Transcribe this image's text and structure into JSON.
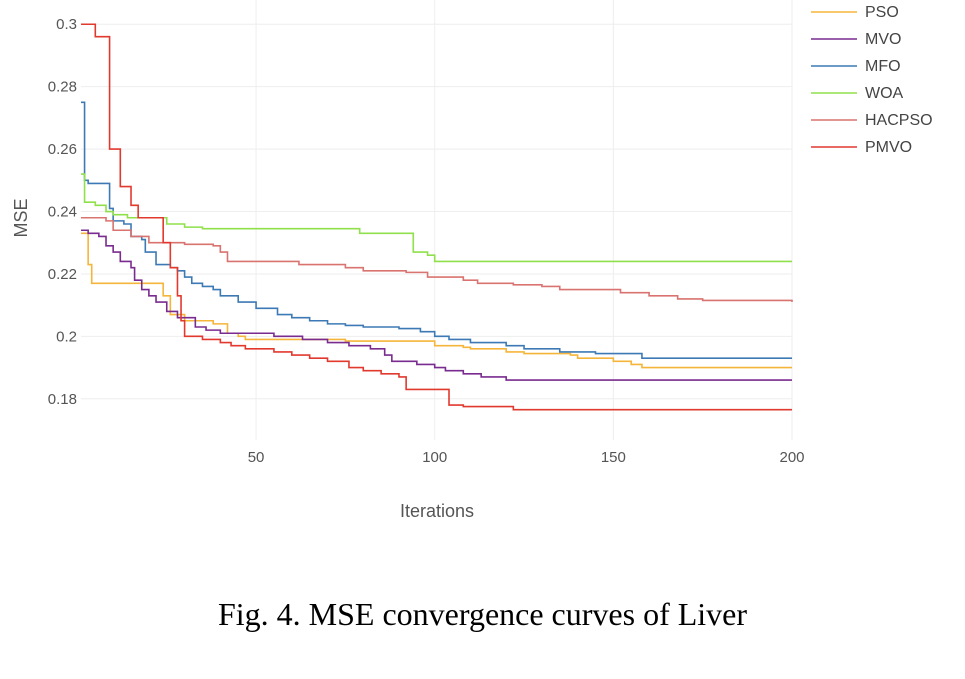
{
  "caption": "Fig. 4.  MSE convergence curves of Liver",
  "chart_data": {
    "type": "line",
    "title": "",
    "xlabel": "Iterations",
    "ylabel": "MSE",
    "xlim": [
      1,
      200
    ],
    "ylim": [
      0.17,
      0.302
    ],
    "x_ticks": [
      50,
      100,
      150,
      200
    ],
    "y_ticks": [
      0.18,
      0.2,
      0.22,
      0.24,
      0.26,
      0.28,
      0.3
    ],
    "y_tick_labels": [
      "0.18",
      "0.2",
      "0.22",
      "0.24",
      "0.26",
      "0.28",
      "0.3"
    ],
    "grid": true,
    "legend_position": "top-right",
    "series": [
      {
        "name": "PSO",
        "color": "#f5b53a",
        "points": [
          [
            1,
            0.233
          ],
          [
            3,
            0.223
          ],
          [
            4,
            0.217
          ],
          [
            20,
            0.217
          ],
          [
            24,
            0.213
          ],
          [
            26,
            0.207
          ],
          [
            30,
            0.205
          ],
          [
            38,
            0.204
          ],
          [
            42,
            0.201
          ],
          [
            45,
            0.2
          ],
          [
            47,
            0.199
          ],
          [
            65,
            0.199
          ],
          [
            75,
            0.1985
          ],
          [
            100,
            0.197
          ],
          [
            108,
            0.1965
          ],
          [
            110,
            0.196
          ],
          [
            120,
            0.195
          ],
          [
            125,
            0.1945
          ],
          [
            138,
            0.194
          ],
          [
            140,
            0.193
          ],
          [
            150,
            0.192
          ],
          [
            155,
            0.191
          ],
          [
            158,
            0.19
          ],
          [
            200,
            0.19
          ]
        ]
      },
      {
        "name": "MVO",
        "color": "#7a2b8f",
        "points": [
          [
            1,
            0.234
          ],
          [
            3,
            0.233
          ],
          [
            6,
            0.232
          ],
          [
            8,
            0.229
          ],
          [
            10,
            0.227
          ],
          [
            12,
            0.224
          ],
          [
            15,
            0.222
          ],
          [
            16,
            0.218
          ],
          [
            18,
            0.215
          ],
          [
            20,
            0.213
          ],
          [
            22,
            0.211
          ],
          [
            25,
            0.208
          ],
          [
            28,
            0.206
          ],
          [
            33,
            0.203
          ],
          [
            36,
            0.202
          ],
          [
            40,
            0.201
          ],
          [
            55,
            0.2
          ],
          [
            63,
            0.199
          ],
          [
            70,
            0.198
          ],
          [
            76,
            0.197
          ],
          [
            82,
            0.196
          ],
          [
            86,
            0.194
          ],
          [
            88,
            0.192
          ],
          [
            95,
            0.191
          ],
          [
            100,
            0.19
          ],
          [
            103,
            0.189
          ],
          [
            108,
            0.188
          ],
          [
            113,
            0.187
          ],
          [
            120,
            0.186
          ],
          [
            200,
            0.186
          ]
        ]
      },
      {
        "name": "MFO",
        "color": "#3d7ab5",
        "points": [
          [
            1,
            0.275
          ],
          [
            2,
            0.25
          ],
          [
            3,
            0.249
          ],
          [
            8,
            0.249
          ],
          [
            9,
            0.241
          ],
          [
            10,
            0.237
          ],
          [
            13,
            0.236
          ],
          [
            15,
            0.232
          ],
          [
            18,
            0.231
          ],
          [
            19,
            0.227
          ],
          [
            22,
            0.223
          ],
          [
            26,
            0.222
          ],
          [
            28,
            0.221
          ],
          [
            30,
            0.219
          ],
          [
            32,
            0.217
          ],
          [
            35,
            0.216
          ],
          [
            38,
            0.215
          ],
          [
            40,
            0.213
          ],
          [
            45,
            0.211
          ],
          [
            50,
            0.209
          ],
          [
            56,
            0.207
          ],
          [
            60,
            0.206
          ],
          [
            65,
            0.205
          ],
          [
            70,
            0.204
          ],
          [
            75,
            0.2035
          ],
          [
            80,
            0.203
          ],
          [
            90,
            0.2025
          ],
          [
            96,
            0.2015
          ],
          [
            100,
            0.2
          ],
          [
            104,
            0.199
          ],
          [
            110,
            0.198
          ],
          [
            120,
            0.197
          ],
          [
            125,
            0.196
          ],
          [
            135,
            0.195
          ],
          [
            145,
            0.1945
          ],
          [
            158,
            0.193
          ],
          [
            200,
            0.193
          ]
        ]
      },
      {
        "name": "WOA",
        "color": "#8fe04a",
        "points": [
          [
            1,
            0.252
          ],
          [
            2,
            0.243
          ],
          [
            5,
            0.242
          ],
          [
            8,
            0.24
          ],
          [
            10,
            0.239
          ],
          [
            14,
            0.238
          ],
          [
            22,
            0.238
          ],
          [
            25,
            0.236
          ],
          [
            30,
            0.235
          ],
          [
            35,
            0.2345
          ],
          [
            78,
            0.2345
          ],
          [
            79,
            0.233
          ],
          [
            88,
            0.233
          ],
          [
            93,
            0.233
          ],
          [
            94,
            0.227
          ],
          [
            98,
            0.226
          ],
          [
            100,
            0.224
          ],
          [
            200,
            0.224
          ]
        ]
      },
      {
        "name": "HACPSO",
        "color": "#d9736f",
        "points": [
          [
            1,
            0.238
          ],
          [
            8,
            0.237
          ],
          [
            10,
            0.234
          ],
          [
            15,
            0.232
          ],
          [
            20,
            0.23
          ],
          [
            30,
            0.2295
          ],
          [
            38,
            0.229
          ],
          [
            40,
            0.227
          ],
          [
            42,
            0.224
          ],
          [
            55,
            0.224
          ],
          [
            62,
            0.223
          ],
          [
            75,
            0.222
          ],
          [
            80,
            0.221
          ],
          [
            92,
            0.2205
          ],
          [
            98,
            0.219
          ],
          [
            108,
            0.218
          ],
          [
            112,
            0.217
          ],
          [
            122,
            0.2165
          ],
          [
            130,
            0.216
          ],
          [
            135,
            0.215
          ],
          [
            152,
            0.214
          ],
          [
            160,
            0.213
          ],
          [
            168,
            0.212
          ],
          [
            175,
            0.2115
          ],
          [
            200,
            0.211
          ]
        ]
      },
      {
        "name": "PMVO",
        "color": "#e2392e",
        "points": [
          [
            1,
            0.3
          ],
          [
            4,
            0.3
          ],
          [
            5,
            0.296
          ],
          [
            8,
            0.296
          ],
          [
            9,
            0.26
          ],
          [
            11,
            0.26
          ],
          [
            12,
            0.248
          ],
          [
            14,
            0.248
          ],
          [
            15,
            0.242
          ],
          [
            17,
            0.238
          ],
          [
            22,
            0.238
          ],
          [
            24,
            0.23
          ],
          [
            26,
            0.222
          ],
          [
            28,
            0.213
          ],
          [
            29,
            0.205
          ],
          [
            30,
            0.2
          ],
          [
            35,
            0.199
          ],
          [
            40,
            0.198
          ],
          [
            43,
            0.197
          ],
          [
            47,
            0.196
          ],
          [
            55,
            0.195
          ],
          [
            60,
            0.194
          ],
          [
            65,
            0.193
          ],
          [
            70,
            0.192
          ],
          [
            76,
            0.19
          ],
          [
            80,
            0.189
          ],
          [
            85,
            0.188
          ],
          [
            90,
            0.187
          ],
          [
            92,
            0.183
          ],
          [
            101,
            0.183
          ],
          [
            104,
            0.178
          ],
          [
            108,
            0.1775
          ],
          [
            120,
            0.1775
          ],
          [
            122,
            0.1765
          ],
          [
            200,
            0.1765
          ]
        ]
      }
    ]
  }
}
